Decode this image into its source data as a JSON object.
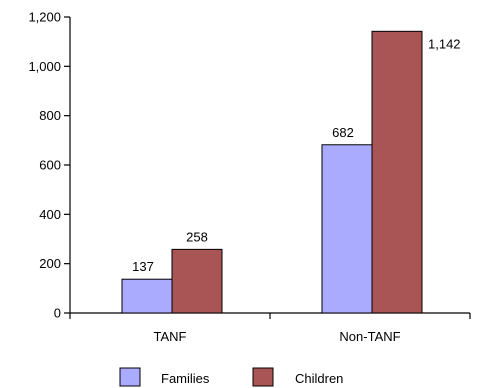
{
  "chart_data": {
    "type": "bar",
    "categories": [
      "TANF",
      "Non-TANF"
    ],
    "series": [
      {
        "name": "Families",
        "values": [
          137,
          682
        ],
        "color": "#aaaaff"
      },
      {
        "name": "Children",
        "values": [
          258,
          1142
        ],
        "color": "#aa5555"
      }
    ],
    "data_labels": [
      [
        "137",
        "682"
      ],
      [
        "258",
        "1,142"
      ]
    ],
    "y_ticks": [
      0,
      200,
      400,
      600,
      800,
      1000,
      1200
    ],
    "y_tick_labels": [
      "0",
      "200",
      "400",
      "600",
      "800",
      "1,000",
      "1,200"
    ],
    "ylim": [
      0,
      1200
    ],
    "grid": false,
    "legend_position": "bottom",
    "title": "",
    "xlabel": "",
    "ylabel": ""
  }
}
